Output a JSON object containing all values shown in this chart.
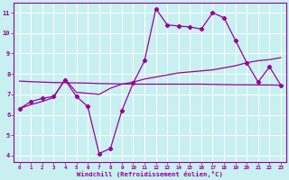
{
  "xlabel": "Windchill (Refroidissement éolien,°C)",
  "bg_color": "#c8f0f0",
  "line_color": "#990099",
  "grid_color": "#aadddd",
  "x_data": [
    0,
    1,
    2,
    3,
    4,
    5,
    6,
    7,
    8,
    9,
    10,
    11,
    12,
    13,
    14,
    15,
    16,
    17,
    18,
    19,
    20,
    21,
    22,
    23
  ],
  "y_main": [
    6.3,
    6.65,
    6.8,
    6.9,
    7.7,
    6.9,
    6.4,
    4.1,
    4.35,
    6.2,
    7.55,
    8.65,
    11.2,
    10.4,
    10.35,
    10.3,
    10.2,
    11.0,
    10.75,
    9.65,
    8.55,
    7.6,
    8.35,
    7.45
  ],
  "y_trend1": [
    6.3,
    6.5,
    6.65,
    6.85,
    7.75,
    7.1,
    7.05,
    7.0,
    7.3,
    7.5,
    7.6,
    7.75,
    7.85,
    7.95,
    8.05,
    8.1,
    8.15,
    8.2,
    8.3,
    8.4,
    8.55,
    8.65,
    8.7,
    8.8
  ],
  "y_trend2": [
    7.65,
    7.62,
    7.6,
    7.58,
    7.57,
    7.56,
    7.55,
    7.53,
    7.52,
    7.51,
    7.5,
    7.5,
    7.5,
    7.5,
    7.5,
    7.5,
    7.5,
    7.49,
    7.48,
    7.47,
    7.47,
    7.46,
    7.46,
    7.45
  ],
  "xlim": [
    -0.5,
    23.5
  ],
  "ylim": [
    3.7,
    11.5
  ],
  "yticks": [
    4,
    5,
    6,
    7,
    8,
    9,
    10,
    11
  ],
  "xticks": [
    0,
    1,
    2,
    3,
    4,
    5,
    6,
    7,
    8,
    9,
    10,
    11,
    12,
    13,
    14,
    15,
    16,
    17,
    18,
    19,
    20,
    21,
    22,
    23
  ]
}
